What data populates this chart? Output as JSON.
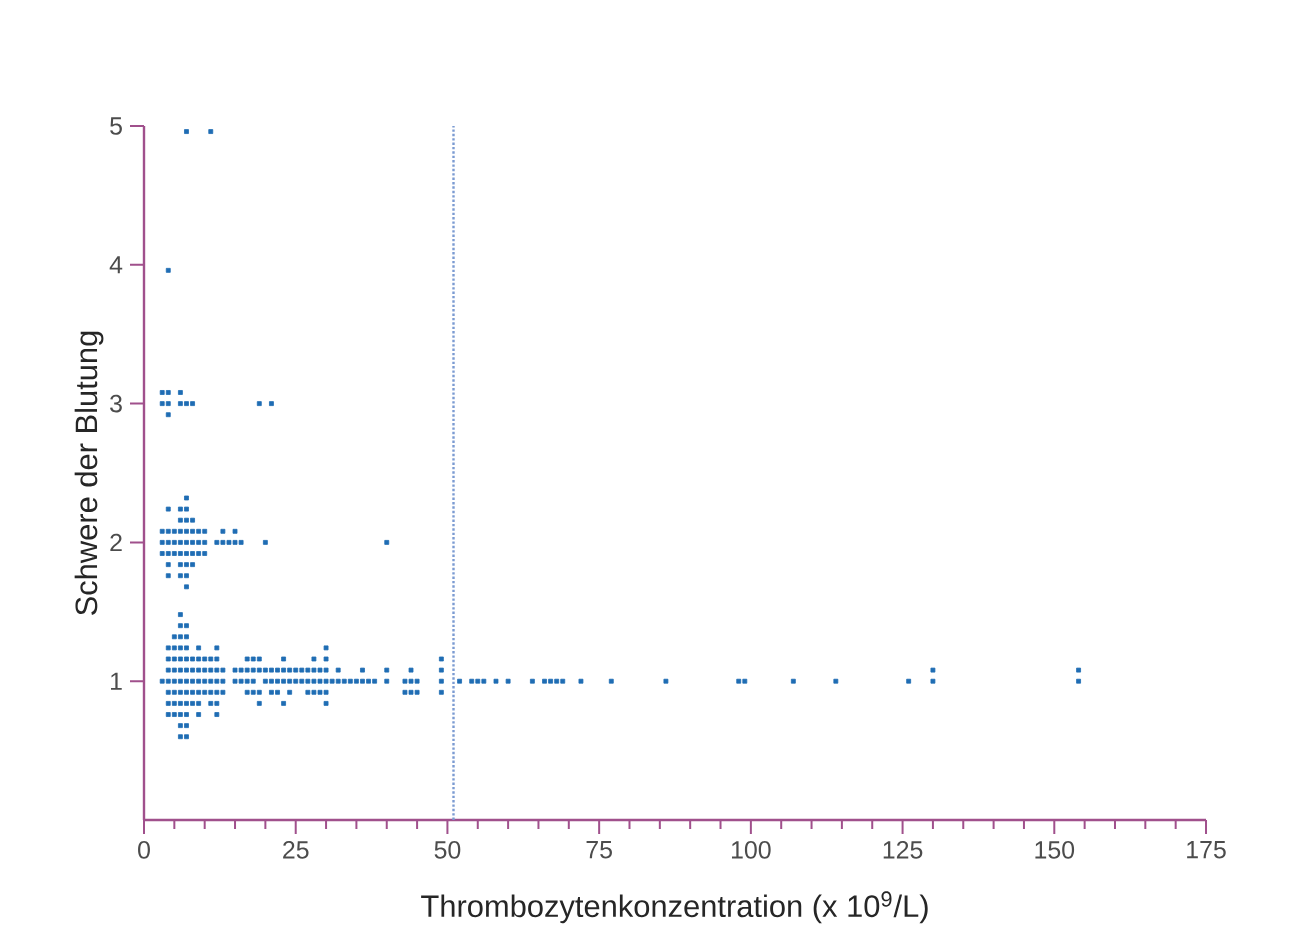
{
  "chart_data": {
    "type": "scatter",
    "xlabel": "Thrombozytenkonzentration (x 10$^{9}$/L)",
    "ylabel": "Schwere der Blutung",
    "xlim": [
      0,
      175
    ],
    "ylim": [
      0,
      5
    ],
    "xticks": [
      0,
      {
        "value": 5,
        "label": null
      },
      {
        "value": 10,
        "label": null
      },
      {
        "value": 15,
        "label": null
      },
      {
        "value": 20,
        "label": null
      },
      25,
      {
        "value": 30,
        "label": null
      },
      {
        "value": 35,
        "label": null
      },
      {
        "value": 40,
        "label": null
      },
      {
        "value": 45,
        "label": null
      },
      50,
      {
        "value": 55,
        "label": null
      },
      {
        "value": 60,
        "label": null
      },
      {
        "value": 65,
        "label": null
      },
      {
        "value": 70,
        "label": null
      },
      75,
      {
        "value": 80,
        "label": null
      },
      {
        "value": 85,
        "label": null
      },
      {
        "value": 90,
        "label": null
      },
      {
        "value": 95,
        "label": null
      },
      100,
      {
        "value": 105,
        "label": null
      },
      {
        "value": 110,
        "label": null
      },
      {
        "value": 115,
        "label": null
      },
      {
        "value": 120,
        "label": null
      },
      125,
      {
        "value": 130,
        "label": null
      },
      {
        "value": 135,
        "label": null
      },
      {
        "value": 140,
        "label": null
      },
      {
        "value": 145,
        "label": null
      },
      150,
      {
        "value": 155,
        "label": null
      },
      {
        "value": 160,
        "label": null
      },
      {
        "value": 165,
        "label": null
      },
      {
        "value": 170,
        "label": null
      },
      175
    ],
    "yticks": [
      1,
      2,
      3,
      4,
      5
    ],
    "marker": "square",
    "grid": false,
    "legend": false,
    "ref_lines": [
      {
        "axis": "x",
        "value": 51,
        "color": "#7b9bd2",
        "line_style": "dotted"
      }
    ],
    "series": [
      {
        "color": "#1f6db4",
        "x": [
          7,
          11
        ],
        "values": [
          4.96,
          4.96
        ]
      },
      {
        "color": "#1f6db4",
        "x": [
          4
        ],
        "values": [
          3.96
        ]
      },
      {
        "color": "#1f6db4",
        "x": [
          3,
          4,
          6
        ],
        "values": [
          3.08,
          3.08,
          3.08
        ]
      },
      {
        "color": "#1f6db4",
        "x": [
          3,
          4,
          6,
          7,
          8,
          19,
          21
        ],
        "values": [
          3,
          3,
          3,
          3,
          3,
          3,
          3
        ]
      },
      {
        "color": "#1f6db4",
        "x": [
          4
        ],
        "values": [
          2.92
        ]
      },
      {
        "color": "#1f6db4",
        "x": [
          7
        ],
        "values": [
          2.32
        ]
      },
      {
        "color": "#1f6db4",
        "x": [
          4,
          6,
          7
        ],
        "values": [
          2.24,
          2.24,
          2.24
        ]
      },
      {
        "color": "#1f6db4",
        "x": [
          6,
          7,
          8
        ],
        "values": [
          2.16,
          2.16,
          2.16
        ]
      },
      {
        "color": "#1f6db4",
        "x": [
          3,
          4,
          5,
          6,
          7,
          8,
          9,
          10,
          13,
          15
        ],
        "values": [
          2.08,
          2.08,
          2.08,
          2.08,
          2.08,
          2.08,
          2.08,
          2.08,
          2.08,
          2.08
        ]
      },
      {
        "color": "#1f6db4",
        "x": [
          3,
          4,
          5,
          6,
          7,
          8,
          9,
          10,
          12,
          13,
          14,
          15,
          16,
          20,
          40
        ],
        "values": [
          2,
          2,
          2,
          2,
          2,
          2,
          2,
          2,
          2,
          2,
          2,
          2,
          2,
          2,
          2
        ]
      },
      {
        "color": "#1f6db4",
        "x": [
          3,
          4,
          5,
          6,
          7,
          8,
          9,
          10
        ],
        "values": [
          1.92,
          1.92,
          1.92,
          1.92,
          1.92,
          1.92,
          1.92,
          1.92
        ]
      },
      {
        "color": "#1f6db4",
        "x": [
          4,
          6,
          7,
          8
        ],
        "values": [
          1.84,
          1.84,
          1.84,
          1.84
        ]
      },
      {
        "color": "#1f6db4",
        "x": [
          4,
          6,
          7
        ],
        "values": [
          1.76,
          1.76,
          1.76
        ]
      },
      {
        "color": "#1f6db4",
        "x": [
          7
        ],
        "values": [
          1.68
        ]
      },
      {
        "color": "#1f6db4",
        "x": [
          6
        ],
        "values": [
          1.48
        ]
      },
      {
        "color": "#1f6db4",
        "x": [
          6,
          7
        ],
        "values": [
          1.4,
          1.4
        ]
      },
      {
        "color": "#1f6db4",
        "x": [
          5,
          6,
          7
        ],
        "values": [
          1.32,
          1.32,
          1.32
        ]
      },
      {
        "color": "#1f6db4",
        "x": [
          4,
          5,
          6,
          7,
          9,
          12,
          30
        ],
        "values": [
          1.24,
          1.24,
          1.24,
          1.24,
          1.24,
          1.24,
          1.24
        ]
      },
      {
        "color": "#1f6db4",
        "x": [
          4,
          5,
          6,
          7,
          8,
          9,
          10,
          11,
          12,
          17,
          18,
          19,
          23,
          28,
          30,
          49
        ],
        "values": [
          1.16,
          1.16,
          1.16,
          1.16,
          1.16,
          1.16,
          1.16,
          1.16,
          1.16,
          1.16,
          1.16,
          1.16,
          1.16,
          1.16,
          1.16,
          1.16
        ]
      },
      {
        "color": "#1f6db4",
        "x": [
          4,
          5,
          6,
          7,
          8,
          9,
          10,
          11,
          12,
          13,
          15,
          16,
          17,
          18,
          19,
          20,
          21,
          22,
          23,
          24,
          25,
          26,
          27,
          28,
          29,
          30,
          32,
          36,
          40,
          44,
          49,
          130,
          154
        ],
        "values": [
          1.08,
          1.08,
          1.08,
          1.08,
          1.08,
          1.08,
          1.08,
          1.08,
          1.08,
          1.08,
          1.08,
          1.08,
          1.08,
          1.08,
          1.08,
          1.08,
          1.08,
          1.08,
          1.08,
          1.08,
          1.08,
          1.08,
          1.08,
          1.08,
          1.08,
          1.08,
          1.08,
          1.08,
          1.08,
          1.08,
          1.08,
          1.08,
          1.08
        ]
      },
      {
        "color": "#1f6db4",
        "x": [
          3,
          4,
          5,
          6,
          7,
          8,
          9,
          10,
          11,
          12,
          13,
          15,
          16,
          17,
          18,
          20,
          21,
          22,
          23,
          24,
          25,
          26,
          27,
          28,
          29,
          30,
          31,
          32,
          33,
          34,
          35,
          36,
          37,
          38,
          40,
          43,
          44,
          45,
          49,
          52,
          54,
          55,
          56,
          58,
          60,
          64,
          66,
          67,
          68,
          69,
          72,
          77,
          86,
          98,
          99,
          107,
          114,
          126,
          130,
          154
        ],
        "values": [
          1,
          1,
          1,
          1,
          1,
          1,
          1,
          1,
          1,
          1,
          1,
          1,
          1,
          1,
          1,
          1,
          1,
          1,
          1,
          1,
          1,
          1,
          1,
          1,
          1,
          1,
          1,
          1,
          1,
          1,
          1,
          1,
          1,
          1,
          1,
          1,
          1,
          1,
          1,
          1,
          1,
          1,
          1,
          1,
          1,
          1,
          1,
          1,
          1,
          1,
          1,
          1,
          1,
          1,
          1,
          1,
          1,
          1,
          1,
          1
        ]
      },
      {
        "color": "#1f6db4",
        "x": [
          4,
          5,
          6,
          7,
          8,
          9,
          10,
          11,
          12,
          13,
          17,
          18,
          19,
          21,
          22,
          24,
          27,
          28,
          29,
          30,
          43,
          44,
          45,
          49
        ],
        "values": [
          0.92,
          0.92,
          0.92,
          0.92,
          0.92,
          0.92,
          0.92,
          0.92,
          0.92,
          0.92,
          0.92,
          0.92,
          0.92,
          0.92,
          0.92,
          0.92,
          0.92,
          0.92,
          0.92,
          0.92,
          0.92,
          0.92,
          0.92,
          0.92
        ]
      },
      {
        "color": "#1f6db4",
        "x": [
          4,
          5,
          6,
          7,
          8,
          9,
          11,
          12,
          19,
          23,
          30
        ],
        "values": [
          0.84,
          0.84,
          0.84,
          0.84,
          0.84,
          0.84,
          0.84,
          0.84,
          0.84,
          0.84,
          0.84
        ]
      },
      {
        "color": "#1f6db4",
        "x": [
          4,
          5,
          6,
          7,
          9,
          12
        ],
        "values": [
          0.76,
          0.76,
          0.76,
          0.76,
          0.76,
          0.76
        ]
      },
      {
        "color": "#1f6db4",
        "x": [
          6,
          7
        ],
        "values": [
          0.68,
          0.68
        ]
      },
      {
        "color": "#1f6db4",
        "x": [
          6,
          7
        ],
        "values": [
          0.6,
          0.6
        ]
      }
    ]
  }
}
